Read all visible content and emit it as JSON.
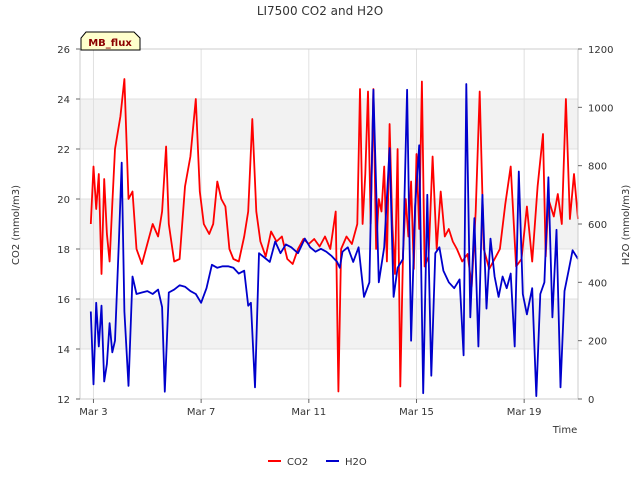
{
  "chart_data": {
    "type": "line",
    "title": "LI7500 CO2 and H2O",
    "site_label": "MB_flux",
    "xlabel": "Time",
    "ylabel_left": "CO2 (mmol/m3)",
    "ylabel_right": "H2O (mmol/m3)",
    "x_range": [
      2.5,
      21.0
    ],
    "ylim_left": [
      12,
      26
    ],
    "ylim_right": [
      0,
      1200
    ],
    "x_ticks": [
      {
        "value": 3,
        "label": "Mar 3"
      },
      {
        "value": 7,
        "label": "Mar 7"
      },
      {
        "value": 11,
        "label": "Mar 11"
      },
      {
        "value": 15,
        "label": "Mar 15"
      },
      {
        "value": 19,
        "label": "Mar 19"
      }
    ],
    "y_ticks_left": [
      12,
      14,
      16,
      18,
      20,
      22,
      24,
      26
    ],
    "y_ticks_right": [
      0,
      200,
      400,
      600,
      800,
      1000,
      1200
    ],
    "grid": true,
    "legend_position": "bottom-center",
    "series": [
      {
        "name": "CO2",
        "axis": "left",
        "color": "#ff0000",
        "points": [
          [
            2.9,
            19.0
          ],
          [
            3.0,
            21.3
          ],
          [
            3.1,
            19.6
          ],
          [
            3.2,
            21.0
          ],
          [
            3.3,
            17.0
          ],
          [
            3.4,
            20.8
          ],
          [
            3.5,
            18.6
          ],
          [
            3.6,
            17.5
          ],
          [
            3.7,
            19.8
          ],
          [
            3.8,
            22.0
          ],
          [
            4.0,
            23.3
          ],
          [
            4.15,
            24.8
          ],
          [
            4.3,
            20.0
          ],
          [
            4.45,
            20.3
          ],
          [
            4.6,
            18.0
          ],
          [
            4.8,
            17.4
          ],
          [
            5.0,
            18.2
          ],
          [
            5.2,
            19.0
          ],
          [
            5.4,
            18.5
          ],
          [
            5.55,
            19.5
          ],
          [
            5.7,
            22.1
          ],
          [
            5.8,
            19.0
          ],
          [
            6.0,
            17.5
          ],
          [
            6.2,
            17.6
          ],
          [
            6.4,
            20.5
          ],
          [
            6.6,
            21.7
          ],
          [
            6.8,
            24.0
          ],
          [
            6.95,
            20.3
          ],
          [
            7.1,
            19.0
          ],
          [
            7.3,
            18.6
          ],
          [
            7.45,
            19.0
          ],
          [
            7.6,
            20.7
          ],
          [
            7.75,
            20.0
          ],
          [
            7.9,
            19.7
          ],
          [
            8.05,
            18.0
          ],
          [
            8.2,
            17.6
          ],
          [
            8.4,
            17.5
          ],
          [
            8.6,
            18.5
          ],
          [
            8.75,
            19.5
          ],
          [
            8.9,
            23.2
          ],
          [
            9.05,
            19.5
          ],
          [
            9.2,
            18.3
          ],
          [
            9.4,
            17.7
          ],
          [
            9.6,
            18.7
          ],
          [
            9.8,
            18.3
          ],
          [
            10.0,
            18.5
          ],
          [
            10.2,
            17.6
          ],
          [
            10.4,
            17.4
          ],
          [
            10.6,
            18.0
          ],
          [
            10.8,
            18.4
          ],
          [
            11.0,
            18.2
          ],
          [
            11.2,
            18.4
          ],
          [
            11.4,
            18.1
          ],
          [
            11.6,
            18.5
          ],
          [
            11.8,
            18.0
          ],
          [
            12.0,
            19.5
          ],
          [
            12.1,
            12.3
          ],
          [
            12.2,
            18.0
          ],
          [
            12.4,
            18.5
          ],
          [
            12.6,
            18.2
          ],
          [
            12.8,
            19.0
          ],
          [
            12.9,
            24.4
          ],
          [
            13.0,
            19.0
          ],
          [
            13.1,
            21.0
          ],
          [
            13.2,
            24.3
          ],
          [
            13.3,
            19.0
          ],
          [
            13.4,
            24.4
          ],
          [
            13.5,
            18.0
          ],
          [
            13.6,
            20.0
          ],
          [
            13.7,
            19.5
          ],
          [
            13.8,
            21.3
          ],
          [
            13.9,
            17.5
          ],
          [
            14.0,
            23.0
          ],
          [
            14.1,
            19.0
          ],
          [
            14.2,
            17.0
          ],
          [
            14.3,
            22.0
          ],
          [
            14.4,
            12.5
          ],
          [
            14.5,
            17.8
          ],
          [
            14.6,
            20.0
          ],
          [
            14.7,
            18.5
          ],
          [
            14.8,
            20.7
          ],
          [
            14.9,
            17.2
          ],
          [
            15.0,
            21.8
          ],
          [
            15.1,
            18.8
          ],
          [
            15.2,
            24.7
          ],
          [
            15.3,
            17.3
          ],
          [
            15.45,
            17.7
          ],
          [
            15.6,
            21.7
          ],
          [
            15.75,
            18.0
          ],
          [
            15.9,
            20.3
          ],
          [
            16.05,
            18.5
          ],
          [
            16.2,
            18.8
          ],
          [
            16.35,
            18.3
          ],
          [
            16.5,
            18.0
          ],
          [
            16.7,
            17.5
          ],
          [
            16.9,
            17.8
          ],
          [
            17.05,
            16.5
          ],
          [
            17.2,
            19.5
          ],
          [
            17.35,
            24.3
          ],
          [
            17.5,
            18.0
          ],
          [
            17.7,
            17.2
          ],
          [
            17.9,
            17.6
          ],
          [
            18.1,
            18.0
          ],
          [
            18.3,
            19.8
          ],
          [
            18.5,
            21.3
          ],
          [
            18.7,
            17.3
          ],
          [
            18.9,
            17.6
          ],
          [
            19.1,
            19.7
          ],
          [
            19.3,
            17.5
          ],
          [
            19.5,
            20.5
          ],
          [
            19.7,
            22.6
          ],
          [
            19.8,
            17.7
          ],
          [
            19.9,
            20.0
          ],
          [
            20.1,
            19.3
          ],
          [
            20.25,
            20.2
          ],
          [
            20.4,
            19.0
          ],
          [
            20.55,
            24.0
          ],
          [
            20.7,
            19.2
          ],
          [
            20.85,
            21.0
          ],
          [
            21.0,
            19.2
          ]
        ]
      },
      {
        "name": "H2O",
        "axis": "right",
        "color": "#0000cc",
        "points": [
          [
            2.9,
            300.0
          ],
          [
            3.0,
            50.0
          ],
          [
            3.1,
            330.0
          ],
          [
            3.2,
            180.0
          ],
          [
            3.3,
            320.0
          ],
          [
            3.4,
            60.0
          ],
          [
            3.5,
            120.0
          ],
          [
            3.6,
            260.0
          ],
          [
            3.7,
            160.0
          ],
          [
            3.8,
            200.0
          ],
          [
            3.95,
            550.0
          ],
          [
            4.05,
            810.0
          ],
          [
            4.15,
            300.0
          ],
          [
            4.3,
            45.0
          ],
          [
            4.45,
            420.0
          ],
          [
            4.6,
            360.0
          ],
          [
            4.8,
            365.0
          ],
          [
            5.0,
            370.0
          ],
          [
            5.2,
            360.0
          ],
          [
            5.4,
            375.0
          ],
          [
            5.55,
            315.0
          ],
          [
            5.65,
            25.0
          ],
          [
            5.8,
            365.0
          ],
          [
            6.0,
            375.0
          ],
          [
            6.2,
            390.0
          ],
          [
            6.4,
            385.0
          ],
          [
            6.6,
            370.0
          ],
          [
            6.8,
            360.0
          ],
          [
            7.0,
            330.0
          ],
          [
            7.2,
            380.0
          ],
          [
            7.4,
            460.0
          ],
          [
            7.6,
            450.0
          ],
          [
            7.8,
            455.0
          ],
          [
            8.0,
            455.0
          ],
          [
            8.2,
            450.0
          ],
          [
            8.4,
            430.0
          ],
          [
            8.6,
            440.0
          ],
          [
            8.75,
            320.0
          ],
          [
            8.85,
            330.0
          ],
          [
            9.0,
            40.0
          ],
          [
            9.15,
            500.0
          ],
          [
            9.35,
            485.0
          ],
          [
            9.55,
            470.0
          ],
          [
            9.75,
            540.0
          ],
          [
            9.95,
            500.0
          ],
          [
            10.15,
            530.0
          ],
          [
            10.35,
            520.0
          ],
          [
            10.6,
            500.0
          ],
          [
            10.85,
            550.0
          ],
          [
            11.05,
            520.0
          ],
          [
            11.25,
            505.0
          ],
          [
            11.45,
            515.0
          ],
          [
            11.65,
            505.0
          ],
          [
            11.85,
            490.0
          ],
          [
            12.05,
            470.0
          ],
          [
            12.15,
            450.0
          ],
          [
            12.25,
            505.0
          ],
          [
            12.45,
            520.0
          ],
          [
            12.65,
            470.0
          ],
          [
            12.85,
            520.0
          ],
          [
            13.05,
            350.0
          ],
          [
            13.25,
            400.0
          ],
          [
            13.4,
            1060.0
          ],
          [
            13.6,
            400.0
          ],
          [
            13.8,
            520.0
          ],
          [
            14.0,
            860.0
          ],
          [
            14.15,
            350.0
          ],
          [
            14.3,
            450.0
          ],
          [
            14.5,
            480.0
          ],
          [
            14.65,
            1060.0
          ],
          [
            14.8,
            200.0
          ],
          [
            14.95,
            660.0
          ],
          [
            15.1,
            870.0
          ],
          [
            15.25,
            20.0
          ],
          [
            15.4,
            700.0
          ],
          [
            15.55,
            80.0
          ],
          [
            15.7,
            500.0
          ],
          [
            15.85,
            520.0
          ],
          [
            16.0,
            440.0
          ],
          [
            16.2,
            400.0
          ],
          [
            16.4,
            380.0
          ],
          [
            16.6,
            410.0
          ],
          [
            16.75,
            150.0
          ],
          [
            16.85,
            1080.0
          ],
          [
            17.0,
            280.0
          ],
          [
            17.15,
            620.0
          ],
          [
            17.3,
            180.0
          ],
          [
            17.45,
            700.0
          ],
          [
            17.6,
            310.0
          ],
          [
            17.75,
            550.0
          ],
          [
            17.9,
            420.0
          ],
          [
            18.05,
            350.0
          ],
          [
            18.2,
            420.0
          ],
          [
            18.35,
            380.0
          ],
          [
            18.5,
            430.0
          ],
          [
            18.65,
            180.0
          ],
          [
            18.8,
            780.0
          ],
          [
            18.95,
            360.0
          ],
          [
            19.1,
            290.0
          ],
          [
            19.3,
            380.0
          ],
          [
            19.45,
            10.0
          ],
          [
            19.6,
            360.0
          ],
          [
            19.75,
            400.0
          ],
          [
            19.9,
            760.0
          ],
          [
            20.05,
            280.0
          ],
          [
            20.2,
            580.0
          ],
          [
            20.35,
            40.0
          ],
          [
            20.5,
            370.0
          ],
          [
            20.65,
            440.0
          ],
          [
            20.8,
            510.0
          ],
          [
            21.0,
            480.0
          ]
        ]
      }
    ]
  }
}
